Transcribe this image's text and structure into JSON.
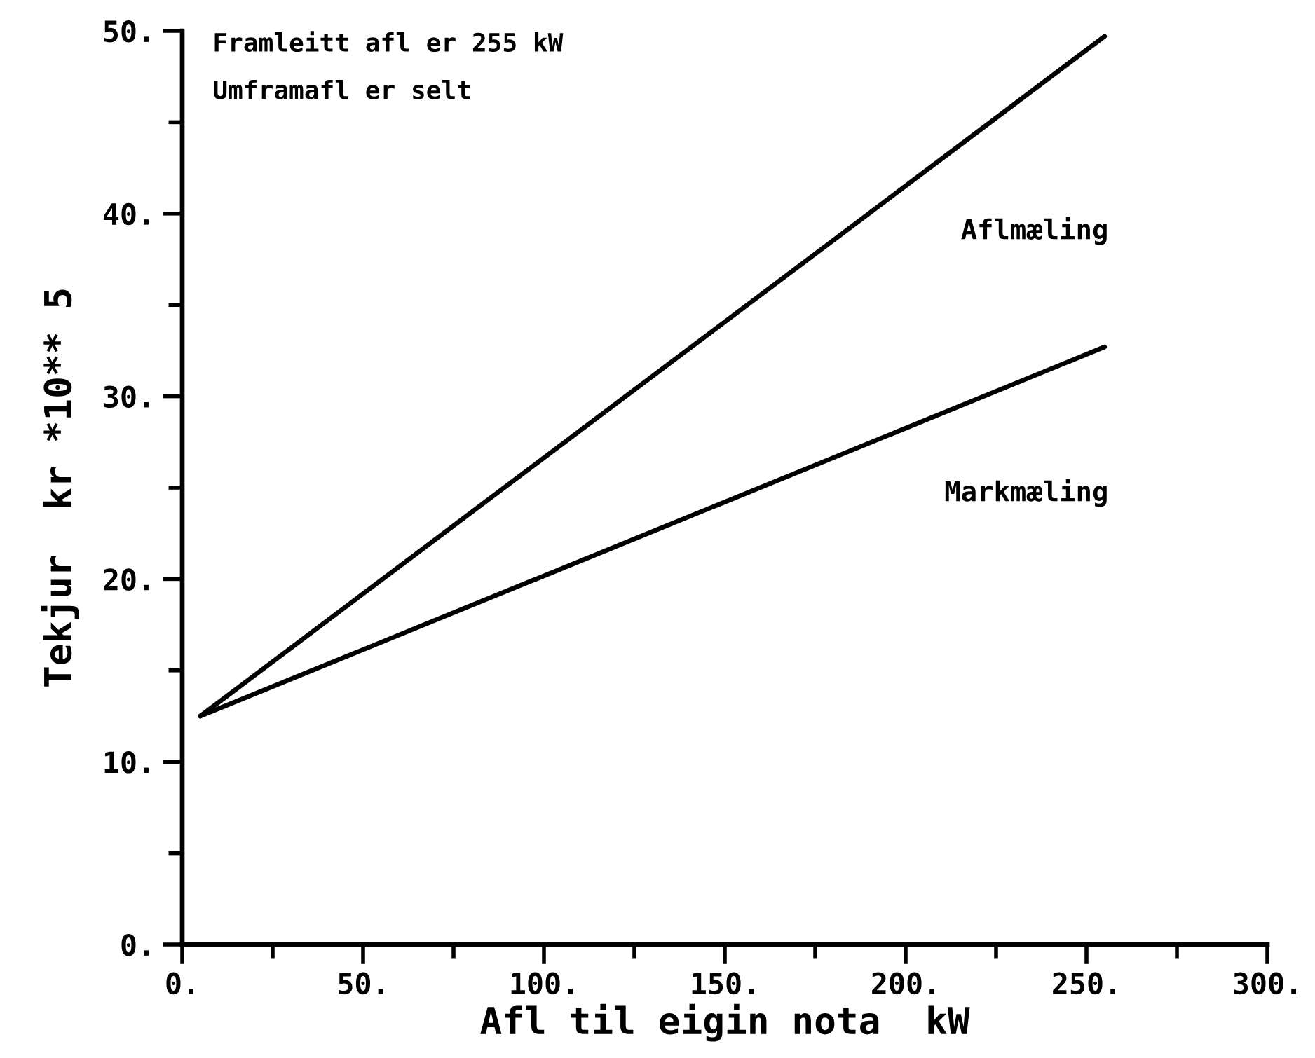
{
  "chart_data": {
    "type": "line",
    "xlabel": "Afl til eigin nota  kW",
    "ylabel": "Tekjur  kr *10** 5",
    "annotations": [
      "Framleitt afl er 255 kW",
      "Umframafl er selt"
    ],
    "x": [
      5,
      255
    ],
    "series": [
      {
        "name": "Aflmæling",
        "color": "#000000",
        "values": [
          12.5,
          49.7
        ]
      },
      {
        "name": "Markmæling",
        "color": "#000000",
        "values": [
          12.5,
          32.7
        ]
      }
    ],
    "xlim": [
      0,
      300
    ],
    "ylim": [
      0,
      50
    ],
    "xticks": [
      {
        "value": 0,
        "label": "0."
      },
      {
        "value": 25,
        "label": null
      },
      {
        "value": 50,
        "label": "50."
      },
      {
        "value": 75,
        "label": null
      },
      {
        "value": 100,
        "label": "100."
      },
      {
        "value": 125,
        "label": null
      },
      {
        "value": 150,
        "label": "150."
      },
      {
        "value": 175,
        "label": null
      },
      {
        "value": 200,
        "label": "200."
      },
      {
        "value": 225,
        "label": null
      },
      {
        "value": 250,
        "label": "250."
      },
      {
        "value": 275,
        "label": null
      },
      {
        "value": 300,
        "label": "300."
      }
    ],
    "yticks": [
      {
        "value": 0,
        "label": "0."
      },
      {
        "value": 5,
        "label": null
      },
      {
        "value": 10,
        "label": "10."
      },
      {
        "value": 15,
        "label": null
      },
      {
        "value": 20,
        "label": "20."
      },
      {
        "value": 25,
        "label": null
      },
      {
        "value": 30,
        "label": "30."
      },
      {
        "value": 35,
        "label": null
      },
      {
        "value": 40,
        "label": "40."
      },
      {
        "value": 45,
        "label": null
      },
      {
        "value": 50,
        "label": "50."
      }
    ],
    "line_style": "solid"
  }
}
